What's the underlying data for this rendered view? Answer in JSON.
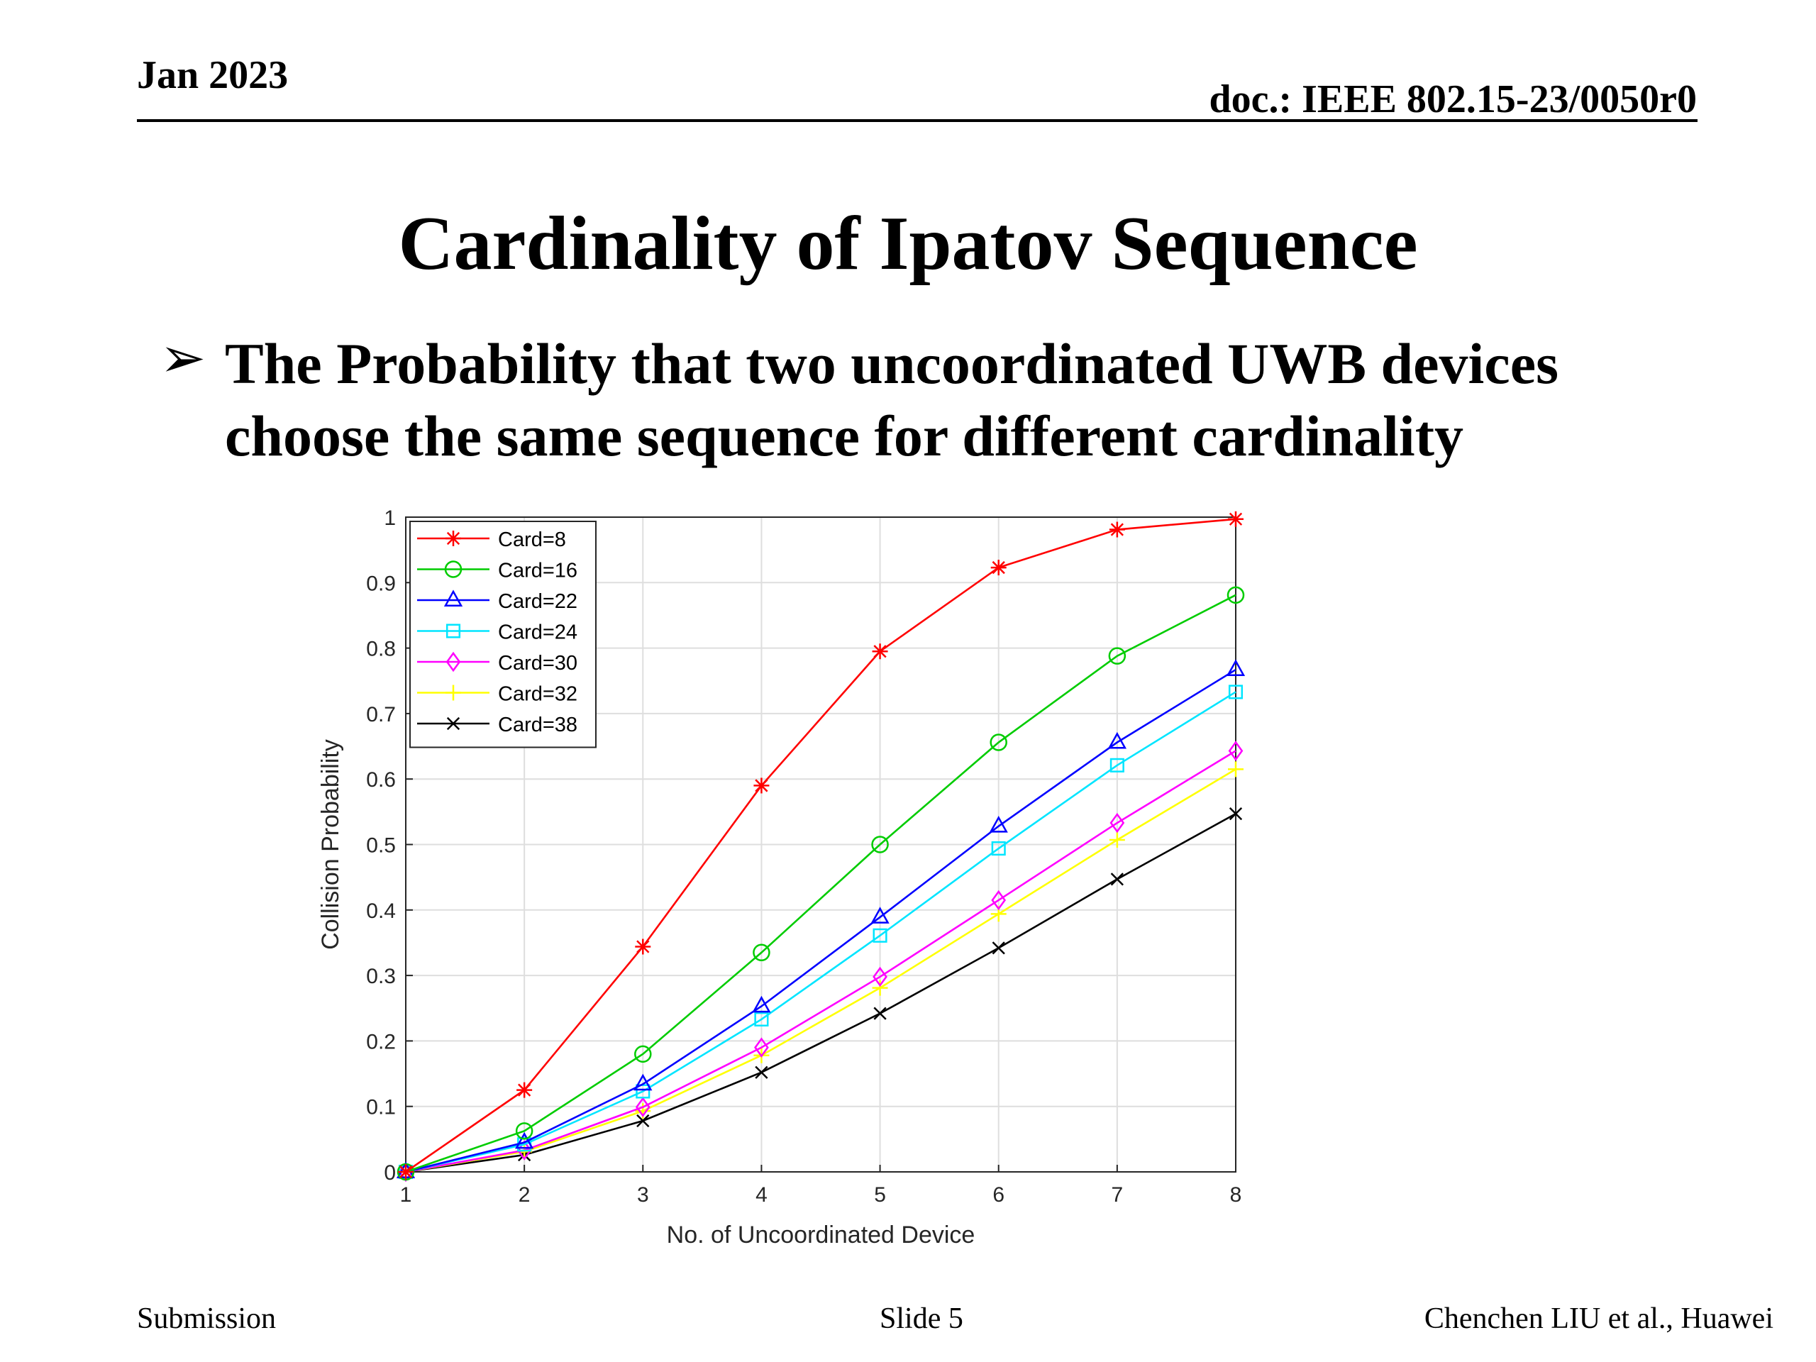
{
  "header": {
    "date": "Jan 2023",
    "doc": "doc.: IEEE 802.15-23/0050r0"
  },
  "slide": {
    "title": "Cardinality of Ipatov Sequence",
    "bullet": "The Probability that two uncoordinated UWB devices choose the same sequence for different cardinality"
  },
  "footer": {
    "left": "Submission",
    "center": "Slide 5",
    "right": "Chenchen LIU et al., Huawei"
  },
  "chart_data": {
    "type": "line",
    "title": "",
    "xlabel": "No. of Uncoordinated Device",
    "ylabel": "Collision Probability",
    "x": [
      1,
      2,
      3,
      4,
      5,
      6,
      7,
      8
    ],
    "xlim": [
      1,
      8
    ],
    "ylim": [
      0,
      1
    ],
    "xticks": [
      "1",
      "2",
      "3",
      "4",
      "5",
      "6",
      "7",
      "8"
    ],
    "yticks": [
      "0",
      "0.1",
      "0.2",
      "0.3",
      "0.4",
      "0.5",
      "0.6",
      "0.7",
      "0.8",
      "0.9",
      "1"
    ],
    "grid": true,
    "legend_position": "top-left",
    "series": [
      {
        "name": "Card=8",
        "color": "#ff0000",
        "marker": "asterisk",
        "values": [
          0,
          0.125,
          0.344,
          0.59,
          0.795,
          0.923,
          0.981,
          0.997
        ]
      },
      {
        "name": "Card=16",
        "color": "#00cc00",
        "marker": "circle",
        "values": [
          0,
          0.0625,
          0.18,
          0.335,
          0.5,
          0.656,
          0.788,
          0.881
        ]
      },
      {
        "name": "Card=22",
        "color": "#0000ff",
        "marker": "triangle",
        "values": [
          0,
          0.045,
          0.134,
          0.253,
          0.389,
          0.528,
          0.656,
          0.767
        ]
      },
      {
        "name": "Card=24",
        "color": "#00e5ff",
        "marker": "square",
        "values": [
          0,
          0.042,
          0.123,
          0.233,
          0.361,
          0.494,
          0.621,
          0.733
        ]
      },
      {
        "name": "Card=30",
        "color": "#ff00ff",
        "marker": "diamond",
        "values": [
          0,
          0.033,
          0.099,
          0.19,
          0.298,
          0.415,
          0.533,
          0.643
        ]
      },
      {
        "name": "Card=32",
        "color": "#ffff00",
        "marker": "plus",
        "values": [
          0,
          0.031,
          0.093,
          0.178,
          0.281,
          0.394,
          0.507,
          0.615
        ]
      },
      {
        "name": "Card=38",
        "color": "#000000",
        "marker": "cross",
        "values": [
          0,
          0.026,
          0.078,
          0.152,
          0.242,
          0.342,
          0.447,
          0.547
        ]
      }
    ]
  }
}
